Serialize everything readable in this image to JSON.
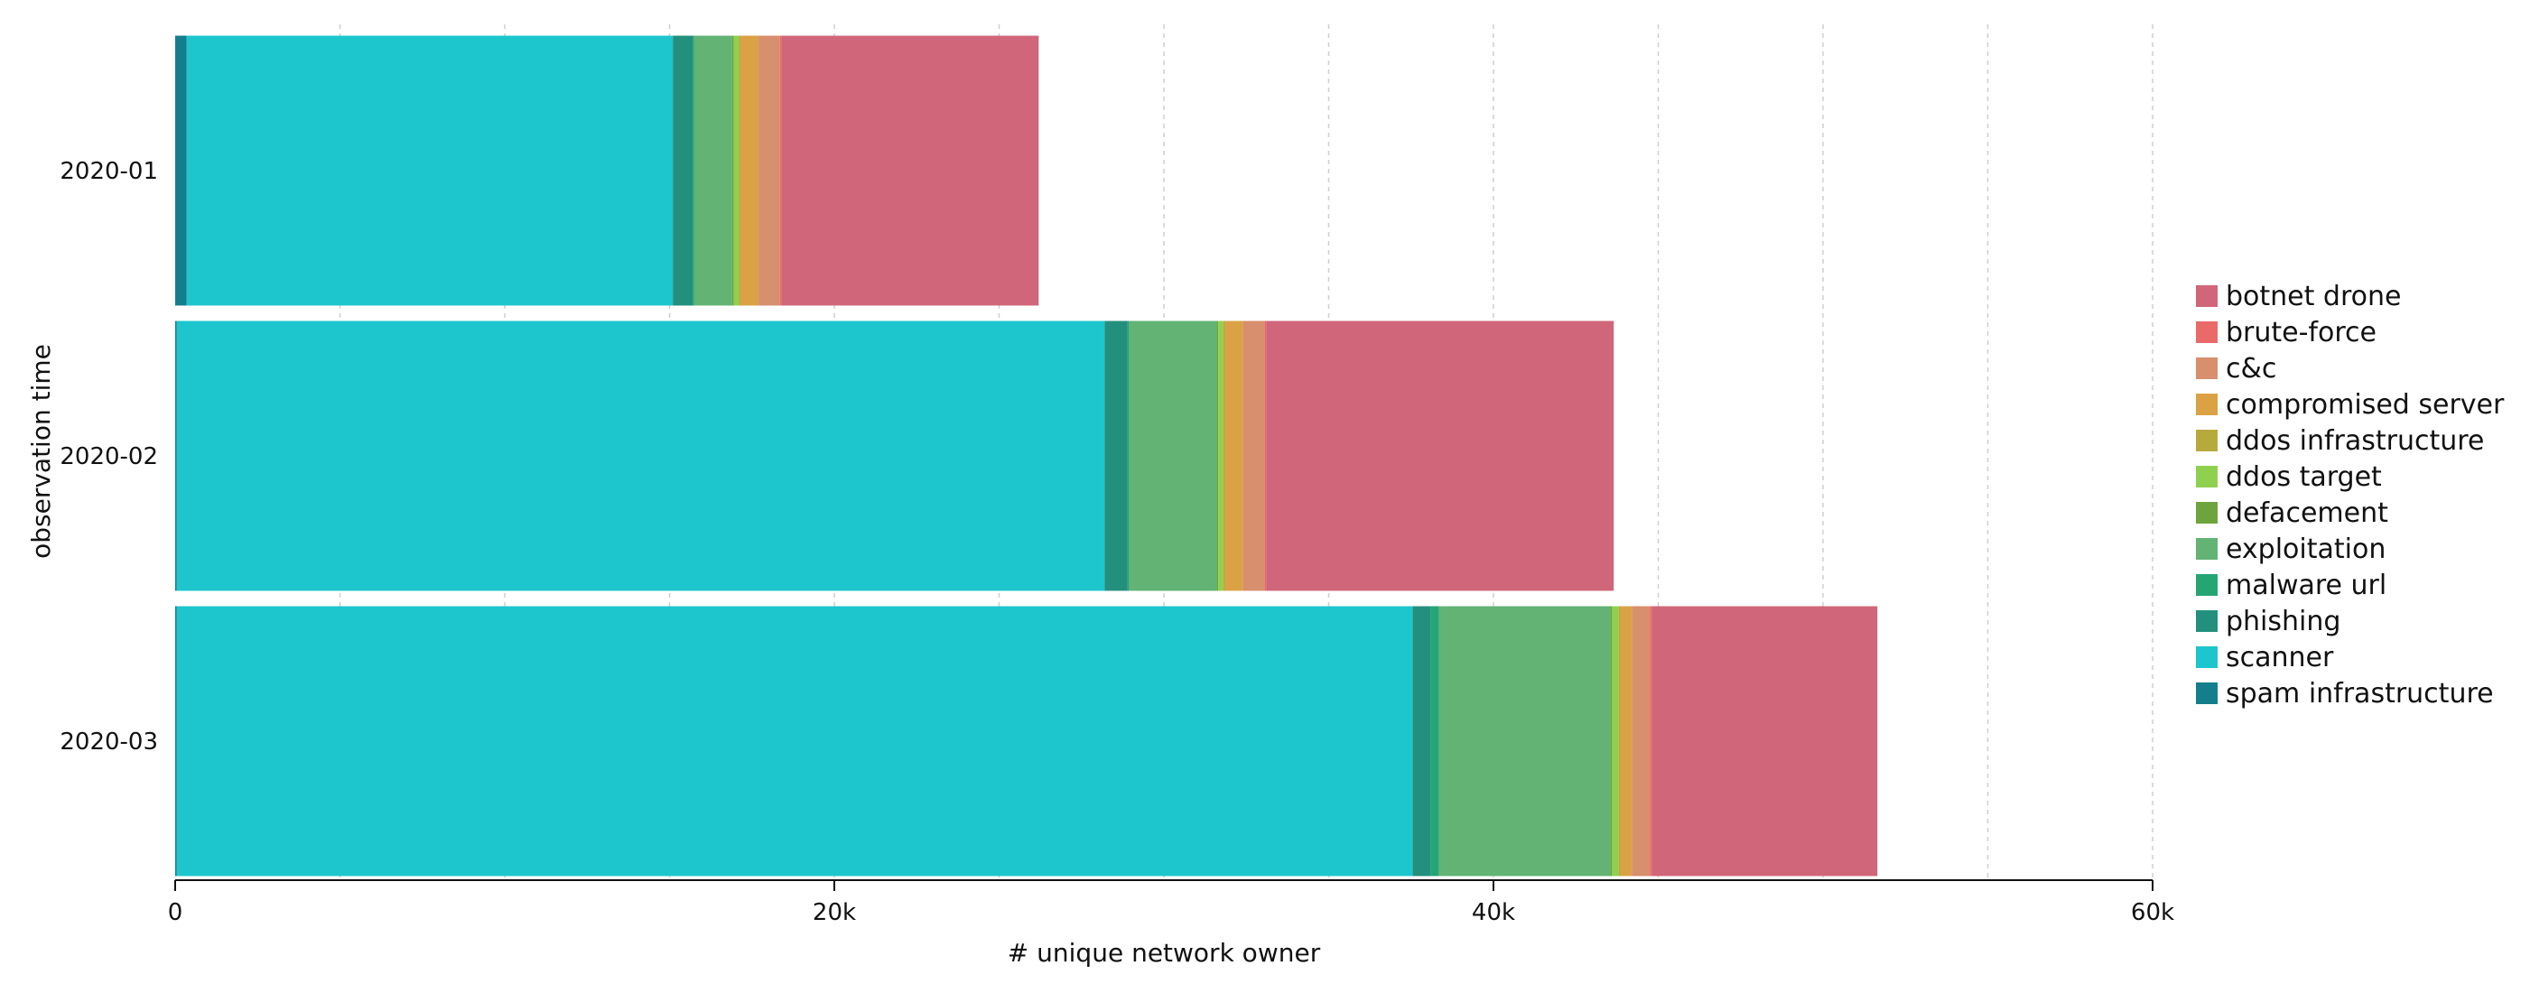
{
  "chart_data": {
    "type": "bar",
    "orientation": "horizontal",
    "stacked": true,
    "xlabel": "# unique network owner",
    "ylabel": "observation time",
    "xlim": [
      0,
      60000
    ],
    "xticks": [
      {
        "value": 0,
        "label": "0"
      },
      {
        "value": 20000,
        "label": "20k"
      },
      {
        "value": 40000,
        "label": "40k"
      },
      {
        "value": 60000,
        "label": "60k"
      }
    ],
    "grid_x_step": 5000,
    "grid": true,
    "legend_position": "right",
    "categories": [
      "2020-01",
      "2020-02",
      "2020-03"
    ],
    "series": [
      {
        "name": "spam infrastructure",
        "color": "#137f8c",
        "values": [
          350,
          50,
          50
        ]
      },
      {
        "name": "scanner",
        "color": "#1cc6cc",
        "values": [
          14750,
          28150,
          37500
        ]
      },
      {
        "name": "phishing",
        "color": "#23907d",
        "values": [
          600,
          700,
          550
        ]
      },
      {
        "name": "malware url",
        "color": "#24a674",
        "values": [
          50,
          50,
          250
        ]
      },
      {
        "name": "exploitation",
        "color": "#62b374",
        "values": [
          1150,
          2650,
          5200
        ]
      },
      {
        "name": "defacement",
        "color": "#6ea43e",
        "values": [
          50,
          50,
          50
        ]
      },
      {
        "name": "ddos target",
        "color": "#8fd14f",
        "values": [
          150,
          150,
          200
        ]
      },
      {
        "name": "ddos infrastructure",
        "color": "#b7aa3c",
        "values": [
          50,
          50,
          50
        ]
      },
      {
        "name": "compromised server",
        "color": "#dba245",
        "values": [
          550,
          550,
          350
        ]
      },
      {
        "name": "c&c",
        "color": "#d78f6d",
        "values": [
          650,
          650,
          550
        ]
      },
      {
        "name": "brute-force",
        "color": "#ea6a6a",
        "values": [
          50,
          50,
          50
        ]
      },
      {
        "name": "botnet drone",
        "color": "#d06679",
        "values": [
          7800,
          10550,
          6850
        ]
      }
    ]
  }
}
